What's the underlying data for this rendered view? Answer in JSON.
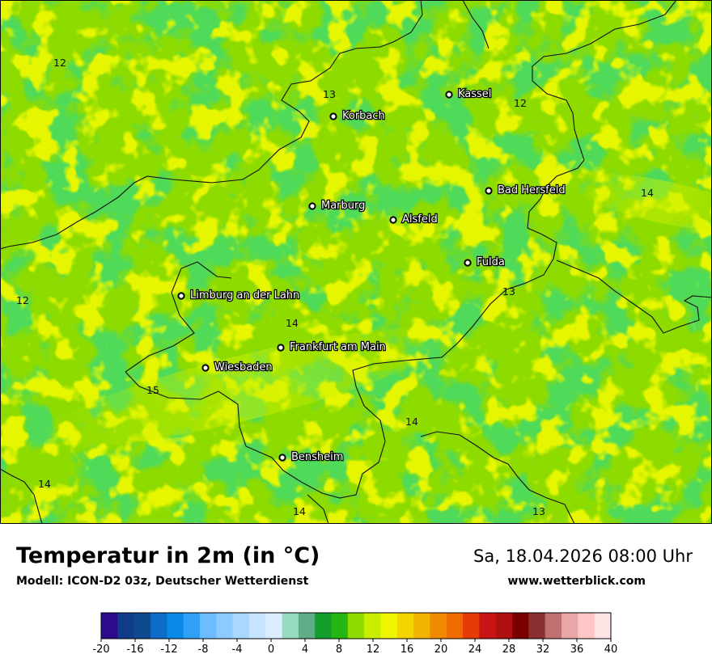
{
  "map": {
    "cities": [
      {
        "name": "Kassel"
      },
      {
        "name": "Korbach"
      },
      {
        "name": "Bad Hersfeld"
      },
      {
        "name": "Marburg"
      },
      {
        "name": "Alsfeld"
      },
      {
        "name": "Fulda"
      },
      {
        "name": "Limburg an der Lahn"
      },
      {
        "name": "Frankfurt am Main"
      },
      {
        "name": "Wiesbaden"
      },
      {
        "name": "Bensheim"
      }
    ],
    "value_labels": [
      "12",
      "13",
      "12",
      "14",
      "12",
      "13",
      "14",
      "15",
      "14",
      "14",
      "14",
      "13"
    ]
  },
  "footer": {
    "title": "Temperatur in 2m (in °C)",
    "subtitle": "Modell: ICON-D2 03z, Deutscher Wetterdienst",
    "datetime": "Sa, 18.04.2026 08:00 Uhr",
    "website": "www.wetterblick.com"
  },
  "legend": {
    "ticks": [
      "-20",
      "-16",
      "-12",
      "-8",
      "-4",
      "0",
      "4",
      "8",
      "12",
      "16",
      "20",
      "24",
      "28",
      "32",
      "36",
      "40"
    ],
    "colors": [
      "#2c0a8c",
      "#123c8a",
      "#0f4a8e",
      "#0c6cc8",
      "#0a88e8",
      "#2fa0f5",
      "#6cbcff",
      "#8ccbff",
      "#a9d7ff",
      "#c6e3ff",
      "#dbeeff",
      "#98dcc0",
      "#5fae88",
      "#139e2e",
      "#24b714",
      "#8edb00",
      "#c9ef00",
      "#eef700",
      "#f4d400",
      "#f2b400",
      "#f08a00",
      "#ee6c00",
      "#e83a08",
      "#c81414",
      "#b01010",
      "#7a0000",
      "#8a3030",
      "#c07070",
      "#e9a6a6",
      "#ffc6c6",
      "#ffe4e4"
    ]
  }
}
